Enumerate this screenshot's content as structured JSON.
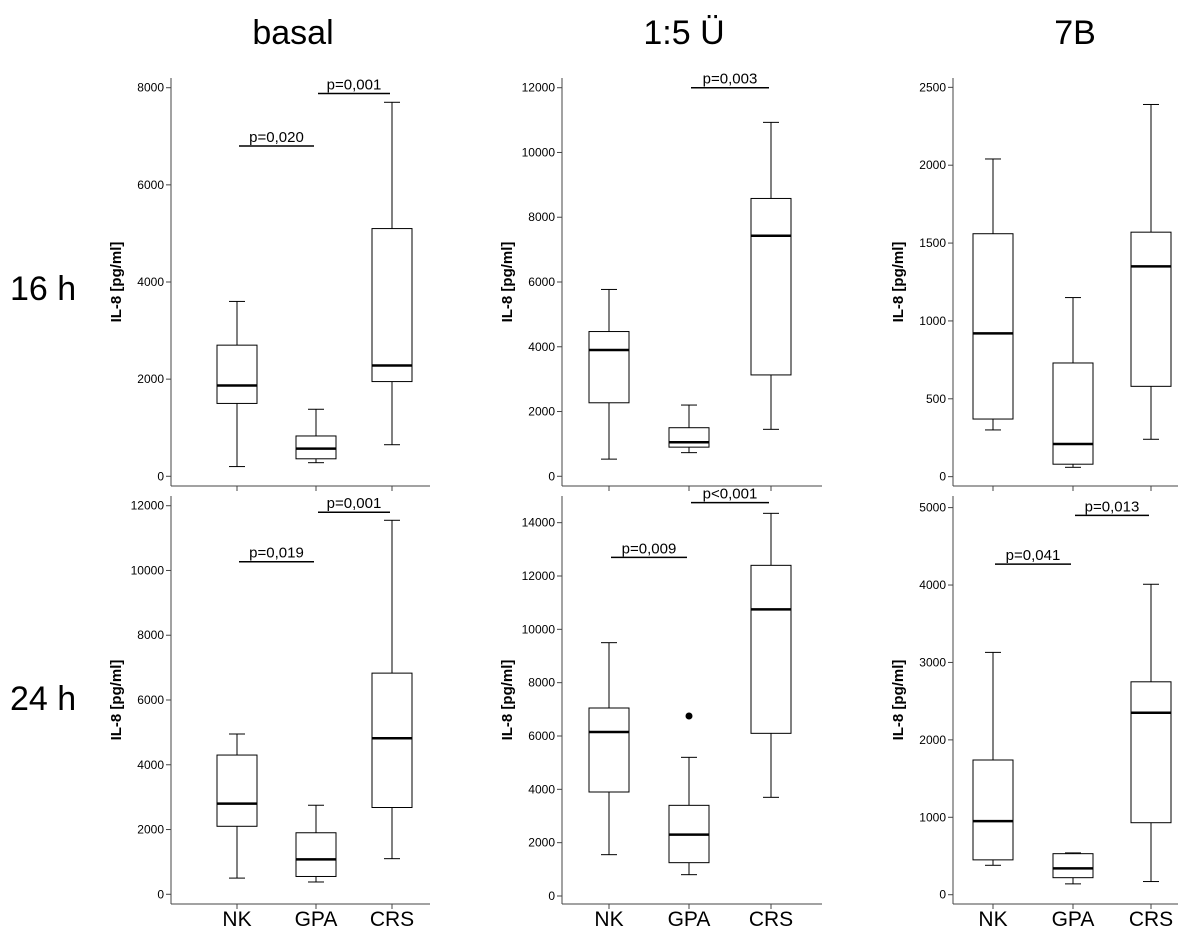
{
  "figure": {
    "column_titles": [
      "basal",
      "1:5 Ü",
      "7B"
    ],
    "row_labels": [
      "16 h",
      "24 h"
    ]
  },
  "chart_data": [
    {
      "type": "box",
      "row": "16 h",
      "column": "basal",
      "ylabel": "IL-8 [pg/ml]",
      "ylim": [
        -200,
        8200
      ],
      "yticks": [
        0,
        2000,
        4000,
        6000,
        8000
      ],
      "categories": [
        "NK",
        "GPA",
        "CRS"
      ],
      "boxes": [
        {
          "category": "NK",
          "min": 200,
          "q1": 1500,
          "median": 1870,
          "q3": 2700,
          "max": 3600,
          "outliers": []
        },
        {
          "category": "GPA",
          "min": 280,
          "q1": 360,
          "median": 570,
          "q3": 830,
          "max": 1380,
          "outliers": []
        },
        {
          "category": "CRS",
          "min": 650,
          "q1": 1950,
          "median": 2280,
          "q3": 5100,
          "max": 7700,
          "outliers": []
        }
      ],
      "annotations": [
        {
          "text": "p=0,020",
          "from": "NK",
          "to": "GPA",
          "y": 6800
        },
        {
          "text": "p=0,001",
          "from": "GPA",
          "to": "CRS",
          "y": 7880
        }
      ]
    },
    {
      "type": "box",
      "row": "16 h",
      "column": "1:5 Ü",
      "ylabel": "IL-8 [pg/ml]",
      "ylim": [
        -300,
        12300
      ],
      "yticks": [
        0,
        2000,
        4000,
        6000,
        8000,
        10000,
        12000
      ],
      "categories": [
        "NK",
        "GPA",
        "CRS"
      ],
      "boxes": [
        {
          "category": "NK",
          "min": 530,
          "q1": 2270,
          "median": 3900,
          "q3": 4470,
          "max": 5770,
          "outliers": []
        },
        {
          "category": "GPA",
          "min": 730,
          "q1": 900,
          "median": 1050,
          "q3": 1500,
          "max": 2200,
          "outliers": []
        },
        {
          "category": "CRS",
          "min": 1450,
          "q1": 3130,
          "median": 7430,
          "q3": 8580,
          "max": 10930,
          "outliers": []
        }
      ],
      "annotations": [
        {
          "text": "p=0,003",
          "from": "GPA",
          "to": "CRS",
          "y": 12000
        }
      ]
    },
    {
      "type": "box",
      "row": "16 h",
      "column": "7B",
      "ylabel": "IL-8 [pg/ml]",
      "ylim": [
        -60,
        2560
      ],
      "yticks": [
        0,
        500,
        1000,
        1500,
        2000,
        2500
      ],
      "categories": [
        "NK",
        "GPA",
        "CRS"
      ],
      "boxes": [
        {
          "category": "NK",
          "min": 300,
          "q1": 370,
          "median": 920,
          "q3": 1560,
          "max": 2040,
          "outliers": []
        },
        {
          "category": "GPA",
          "min": 60,
          "q1": 80,
          "median": 210,
          "q3": 730,
          "max": 1150,
          "outliers": []
        },
        {
          "category": "CRS",
          "min": 240,
          "q1": 580,
          "median": 1350,
          "q3": 1570,
          "max": 2390,
          "outliers": []
        }
      ],
      "annotations": []
    },
    {
      "type": "box",
      "row": "24 h",
      "column": "basal",
      "ylabel": "IL-8 [pg/ml]",
      "ylim": [
        -300,
        12300
      ],
      "yticks": [
        0,
        2000,
        4000,
        6000,
        8000,
        10000,
        12000
      ],
      "categories": [
        "NK",
        "GPA",
        "CRS"
      ],
      "boxes": [
        {
          "category": "NK",
          "min": 500,
          "q1": 2100,
          "median": 2800,
          "q3": 4300,
          "max": 4950,
          "outliers": []
        },
        {
          "category": "GPA",
          "min": 380,
          "q1": 550,
          "median": 1080,
          "q3": 1900,
          "max": 2750,
          "outliers": []
        },
        {
          "category": "CRS",
          "min": 1100,
          "q1": 2680,
          "median": 4820,
          "q3": 6830,
          "max": 11550,
          "outliers": []
        }
      ],
      "annotations": [
        {
          "text": "p=0,019",
          "from": "NK",
          "to": "GPA",
          "y": 10270
        },
        {
          "text": "p=0,001",
          "from": "GPA",
          "to": "CRS",
          "y": 11800
        }
      ]
    },
    {
      "type": "box",
      "row": "24 h",
      "column": "1:5 Ü",
      "ylabel": "IL-8 [pg/ml]",
      "ylim": [
        -300,
        15000
      ],
      "yticks": [
        0,
        2000,
        4000,
        6000,
        8000,
        10000,
        12000,
        14000
      ],
      "categories": [
        "NK",
        "GPA",
        "CRS"
      ],
      "boxes": [
        {
          "category": "NK",
          "min": 1550,
          "q1": 3900,
          "median": 6150,
          "q3": 7050,
          "max": 9500,
          "outliers": []
        },
        {
          "category": "GPA",
          "min": 800,
          "q1": 1250,
          "median": 2300,
          "q3": 3400,
          "max": 5200,
          "outliers": [
            6750
          ]
        },
        {
          "category": "CRS",
          "min": 3700,
          "q1": 6100,
          "median": 10750,
          "q3": 12400,
          "max": 14350,
          "outliers": []
        }
      ],
      "annotations": [
        {
          "text": "p=0,009",
          "from": "NK",
          "to": "GPA",
          "y": 12700
        },
        {
          "text": "p<0,001",
          "from": "GPA",
          "to": "CRS",
          "y": 14750
        }
      ]
    },
    {
      "type": "box",
      "row": "24 h",
      "column": "7B",
      "ylabel": "IL-8 [pg/ml]",
      "ylim": [
        -120,
        5150
      ],
      "yticks": [
        0,
        1000,
        2000,
        3000,
        4000,
        5000
      ],
      "categories": [
        "NK",
        "GPA",
        "CRS"
      ],
      "boxes": [
        {
          "category": "NK",
          "min": 380,
          "q1": 450,
          "median": 950,
          "q3": 1740,
          "max": 3130,
          "outliers": []
        },
        {
          "category": "GPA",
          "min": 140,
          "q1": 220,
          "median": 340,
          "q3": 530,
          "max": 540,
          "outliers": []
        },
        {
          "category": "CRS",
          "min": 170,
          "q1": 930,
          "median": 2350,
          "q3": 2750,
          "max": 4010,
          "outliers": []
        }
      ],
      "annotations": [
        {
          "text": "p=0,041",
          "from": "NK",
          "to": "GPA",
          "y": 4270
        },
        {
          "text": "p=0,013",
          "from": "GPA",
          "to": "CRS",
          "y": 4900
        }
      ]
    }
  ]
}
